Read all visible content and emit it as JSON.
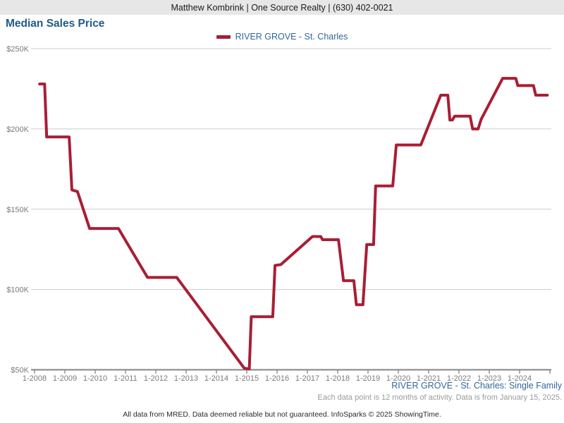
{
  "header": {
    "agent_info": "Matthew Kombrink | One Source Realty | (630) 402-0021"
  },
  "title": "Median Sales Price",
  "legend": {
    "label": "RIVER GROVE - St. Charles",
    "color": "#a81e35"
  },
  "footer": {
    "series_note": "RIVER GROVE - St. Charles: Single Family",
    "data_note": "Each data point is 12 months of activity. Data is from January 15, 2025.",
    "disclaimer": "All data from MRED. Data deemed reliable but not guaranteed. InfoSparks © 2025 ShowingTime."
  },
  "chart_data": {
    "type": "line",
    "title": "Median Sales Price",
    "grid": "horizontal",
    "legend_position": "top-center",
    "x_axis": {
      "unit": "month-year",
      "start": "1-2008",
      "end": "1-2025",
      "tick_interval_months": 12,
      "tick_labels": [
        "1-2008",
        "1-2009",
        "1-2010",
        "1-2011",
        "1-2012",
        "1-2013",
        "1-2014",
        "1-2015",
        "1-2016",
        "1-2017",
        "1-2018",
        "1-2019",
        "1-2020",
        "1-2021",
        "1-2022",
        "1-2023",
        "1-2024"
      ]
    },
    "y_axis": {
      "unit": "USD",
      "range": [
        50000,
        250000
      ],
      "tick_values": [
        250000,
        200000,
        150000,
        100000,
        50000
      ],
      "tick_labels": [
        "$250K",
        "$200K",
        "$150K",
        "$100K",
        "$50K"
      ]
    },
    "series": [
      {
        "name": "RIVER GROVE - St. Charles",
        "color": "#a81e35",
        "x_unit": "months since 2008-01",
        "y_unit": "USD thousands",
        "points": [
          [
            2,
            228
          ],
          [
            4,
            228
          ],
          [
            4.8,
            195
          ],
          [
            13.7,
            195
          ],
          [
            14.8,
            162
          ],
          [
            17,
            161
          ],
          [
            21.8,
            138
          ],
          [
            33.2,
            138
          ],
          [
            44.7,
            107.5
          ],
          [
            56.3,
            107.5
          ],
          [
            83,
            51
          ],
          [
            85,
            50.5
          ],
          [
            85.8,
            83
          ],
          [
            94.3,
            83
          ],
          [
            95.2,
            115
          ],
          [
            97.5,
            115.5
          ],
          [
            110,
            133
          ],
          [
            113.3,
            133
          ],
          [
            114,
            131
          ],
          [
            120.3,
            131
          ],
          [
            122.3,
            105.5
          ],
          [
            126.4,
            105.5
          ],
          [
            127.4,
            90.5
          ],
          [
            130,
            90.5
          ],
          [
            131.5,
            128
          ],
          [
            134.2,
            128
          ],
          [
            135,
            164.5
          ],
          [
            141.8,
            164.5
          ],
          [
            143.2,
            190
          ],
          [
            152.9,
            190
          ],
          [
            160.8,
            221
          ],
          [
            163.6,
            221
          ],
          [
            164.4,
            205.5
          ],
          [
            165.4,
            205.5
          ],
          [
            166.3,
            208
          ],
          [
            172.4,
            208
          ],
          [
            173.4,
            200
          ],
          [
            175.6,
            200
          ],
          [
            176.8,
            206
          ],
          [
            185.3,
            231.5
          ],
          [
            190.5,
            231.5
          ],
          [
            191.3,
            227
          ],
          [
            197.5,
            227
          ],
          [
            198.4,
            221
          ],
          [
            203,
            221
          ]
        ]
      }
    ]
  }
}
